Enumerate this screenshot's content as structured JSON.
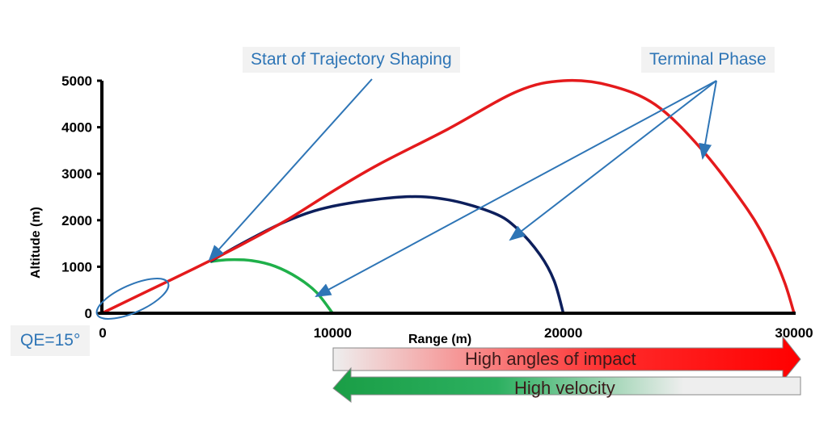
{
  "chart_data": {
    "type": "line",
    "xlabel": "Range (m)",
    "ylabel": "Altitude (m)",
    "xlim": [
      0,
      30000
    ],
    "ylim": [
      0,
      5000
    ],
    "xticks": [
      0,
      10000,
      20000,
      30000
    ],
    "yticks": [
      0,
      1000,
      2000,
      3000,
      4000,
      5000
    ],
    "grid": false,
    "series": [
      {
        "color": "#e41a1c",
        "points": [
          [
            0,
            0
          ],
          [
            2000,
            480
          ],
          [
            4000,
            960
          ],
          [
            6000,
            1460
          ],
          [
            8000,
            2000
          ],
          [
            10000,
            2620
          ],
          [
            12000,
            3200
          ],
          [
            15000,
            3960
          ],
          [
            18000,
            4770
          ],
          [
            20000,
            5000
          ],
          [
            22000,
            4900
          ],
          [
            24000,
            4480
          ],
          [
            26000,
            3520
          ],
          [
            28000,
            2220
          ],
          [
            29000,
            1350
          ],
          [
            29600,
            650
          ],
          [
            30000,
            0
          ]
        ]
      },
      {
        "color": "#0d1f5c",
        "points": [
          [
            4700,
            1110
          ],
          [
            6000,
            1480
          ],
          [
            8000,
            1980
          ],
          [
            10000,
            2300
          ],
          [
            13000,
            2500
          ],
          [
            15000,
            2440
          ],
          [
            17000,
            2150
          ],
          [
            18000,
            1820
          ],
          [
            19000,
            1250
          ],
          [
            19600,
            700
          ],
          [
            20000,
            0
          ]
        ]
      },
      {
        "color": "#1fb04a",
        "points": [
          [
            4700,
            1110
          ],
          [
            5500,
            1150
          ],
          [
            6500,
            1130
          ],
          [
            7500,
            1010
          ],
          [
            8500,
            760
          ],
          [
            9300,
            450
          ],
          [
            10000,
            0
          ]
        ]
      }
    ],
    "annotations": {
      "start_shaping": "Start of Trajectory Shaping",
      "terminal": "Terminal Phase",
      "qe": "QE=15°",
      "impact_arrow": "High angles of impact",
      "velocity_arrow": "High velocity"
    },
    "colors": {
      "annotation": "#2e75b6",
      "impact": "#ff0000",
      "velocity": "#1a9e46"
    }
  }
}
